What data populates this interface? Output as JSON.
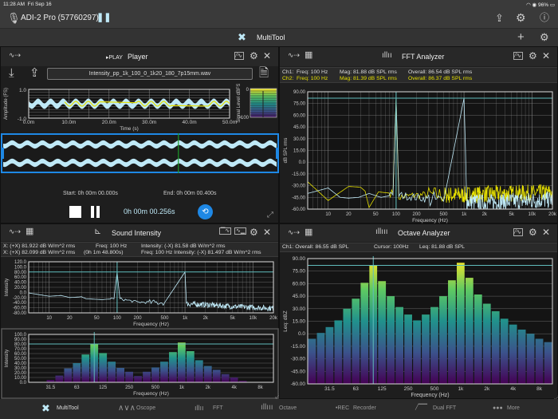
{
  "status": {
    "time": "11:28 AM",
    "date": "Fri Sep 16",
    "battery": "96%"
  },
  "device": {
    "name": "ADI-2 Pro (57760297)"
  },
  "multitool": {
    "title": "MultiTool"
  },
  "player": {
    "play_label": "▸PLAY",
    "title": "Player",
    "file": "Intensity_pp_1k_100_0_1k20_180_7p15mm.wav",
    "start": "Start: 0h 00m 00.000s",
    "end": "End: 0h 00m 00.400s",
    "position": "0h 00m 00.256s",
    "progress": 0.64
  },
  "fft": {
    "title": "FFT Analyzer",
    "ch1": {
      "label": "Ch1:",
      "freq": "Freq: 100 Hz",
      "mag": "Mag: 81.88 dB SPL rms",
      "overall": "Overall: 86.54  dB SPL rms"
    },
    "ch2": {
      "label": "Ch2:",
      "freq": "Freq: 100 Hz",
      "mag": "Mag: 81.39 dB SPL rms",
      "overall": "Overall: 86.37  dB SPL rms"
    }
  },
  "intensity": {
    "title": "Sound Intensity",
    "row1a": "X: (+X) 81.922 dB W/m^2 rms",
    "row1b": "Freq: 100 Hz",
    "row1c": "Intensity: (-X) 81.58 dB W/m^2 rms",
    "row2a": "X: (+X) 82.099 dB W/m^2 rms",
    "row2b": "(0h  1m 48.800s)",
    "row2c": "Freq: 100 Hz  Intensity: (-X) 81.497 dB W/m^2 rms"
  },
  "octave": {
    "title": "Octave Analyzer",
    "overall": "Ch1:  Overall: 86.55 dB SPL",
    "cursor": "Cursor: 100Hz",
    "leq": "Leq: 81.88 dB SPL"
  },
  "tabs": [
    {
      "label": "MultiTool",
      "icon": "multitool-icon"
    },
    {
      "label": "Oscope",
      "icon": "sine-wave-icon"
    },
    {
      "label": "FFT",
      "icon": "fft-icon"
    },
    {
      "label": "Octave",
      "icon": "octave-bars-icon"
    },
    {
      "label": "Recorder",
      "icon": "rec-icon",
      "prefix": "•REC"
    },
    {
      "label": "Dual FFT",
      "icon": "dual-fft-icon"
    },
    {
      "label": "More",
      "icon": "more-icon"
    }
  ],
  "colors": {
    "accent": "#1e88e5",
    "cursor": "#5fbcbc",
    "ch1": "#bfe9f7",
    "ch2": "#e6e000",
    "grid": "#8a8a8a"
  },
  "chart_data": [
    {
      "id": "waveform",
      "type": "line",
      "xlabel": "Time (s)",
      "ylabel": "Amplitude (FS)",
      "ylim": [
        -1,
        1
      ],
      "yticks": [
        "1.0",
        "-1.0"
      ],
      "xticks": [
        "0.0m",
        "10.0m",
        "20.0m",
        "30.0m",
        "40.0m",
        "50.0m"
      ],
      "xlim": [
        0,
        50
      ],
      "series": [
        {
          "name": "Ch1",
          "amplitude": 0.2
        },
        {
          "name": "Ch2",
          "amplitude": 0.15
        }
      ]
    },
    {
      "id": "signal-level",
      "type": "bar",
      "ylabel": "Signal Level dBFS",
      "yticks": [
        "0",
        "-100"
      ],
      "ylim": [
        -100,
        0
      ]
    },
    {
      "id": "fft",
      "type": "line",
      "xlabel": "Frequency (Hz)",
      "ylabel": "dB SPL rms",
      "xlim": [
        5,
        20000
      ],
      "ylim": [
        -60,
        90
      ],
      "xticks": [
        10,
        20,
        50,
        100,
        200,
        500,
        1000,
        2000,
        5000,
        10000,
        20000
      ],
      "xtick_labels": [
        "10",
        "20",
        "50",
        "100",
        "200",
        "500",
        "1k",
        "2k",
        "5k",
        "10k",
        "20k"
      ],
      "yticks": [
        "90.00",
        "75.00",
        "60.00",
        "45.00",
        "30.00",
        "15.00",
        "0.0",
        "-15.00",
        "-30.00",
        "-45.00",
        "-60.00"
      ],
      "cursor_freq": 100,
      "cursor_level": 81.88,
      "series": [
        {
          "name": "Ch1",
          "points": [
            [
              5,
              -40
            ],
            [
              10,
              -33
            ],
            [
              15,
              -45
            ],
            [
              20,
              -46
            ],
            [
              28,
              -45
            ],
            [
              40,
              -40
            ],
            [
              60,
              -45
            ],
            [
              90,
              -42
            ],
            [
              100,
              81.88
            ],
            [
              110,
              -42
            ],
            [
              200,
              -45
            ],
            [
              500,
              -50
            ],
            [
              1000,
              81.88
            ],
            [
              1100,
              -50
            ],
            [
              2000,
              -52
            ],
            [
              5000,
              -50
            ],
            [
              20000,
              -48
            ]
          ]
        },
        {
          "name": "Ch2",
          "points": [
            [
              5,
              -25
            ],
            [
              10,
              -49
            ],
            [
              20,
              -31
            ],
            [
              30,
              -32
            ],
            [
              35,
              -37
            ],
            [
              40,
              -58
            ],
            [
              55,
              -38
            ],
            [
              90,
              -40
            ],
            [
              100,
              81.39
            ],
            [
              110,
              -45
            ],
            [
              200,
              -42
            ],
            [
              500,
              -42
            ],
            [
              1000,
              -42
            ],
            [
              2000,
              -41
            ],
            [
              5000,
              -40
            ],
            [
              20000,
              -39
            ]
          ]
        }
      ]
    },
    {
      "id": "intensity-spectrum",
      "type": "line",
      "xlabel": "Frequency (Hz)",
      "ylabel": "Intensity",
      "xlim": [
        5,
        20000
      ],
      "ylim": [
        -80,
        120
      ],
      "xticks": [
        10,
        20,
        50,
        100,
        200,
        500,
        1000,
        2000,
        5000,
        10000,
        20000
      ],
      "xtick_labels": [
        "10",
        "20",
        "50",
        "100",
        "200",
        "500",
        "1k",
        "2k",
        "5k",
        "10k",
        "20k"
      ],
      "yticks": [
        "120.0",
        "100.0",
        "80.00",
        "60.00",
        "40.00",
        "20.00",
        "0.0",
        "-20.00",
        "-40.00",
        "-60.00",
        "-80.00"
      ],
      "cursor_freq": 100,
      "cursor_level": 80,
      "series": [
        {
          "points": [
            [
              5,
              -2
            ],
            [
              10,
              -15
            ],
            [
              15,
              -12
            ],
            [
              20,
              -20
            ],
            [
              30,
              -17
            ],
            [
              35,
              -25
            ],
            [
              60,
              -28
            ],
            [
              90,
              -25
            ],
            [
              100,
              80
            ],
            [
              110,
              -25
            ],
            [
              200,
              -38
            ],
            [
              500,
              -40
            ],
            [
              1000,
              80
            ],
            [
              1050,
              -45
            ],
            [
              2000,
              -48
            ],
            [
              5000,
              -55
            ],
            [
              20000,
              -62
            ]
          ]
        }
      ]
    },
    {
      "id": "intensity-octave",
      "type": "bar",
      "xlabel": "Frequency (Hz)",
      "ylabel": "Intensity",
      "ylim": [
        0,
        100
      ],
      "yticks": [
        "100.0",
        "90.00",
        "80.00",
        "70.00",
        "60.00",
        "50.00",
        "40.00",
        "30.00",
        "20.00",
        "10.00",
        "0.0"
      ],
      "bands": [
        "20",
        "25",
        "31.5",
        "40",
        "50",
        "63",
        "80",
        "100",
        "125",
        "160",
        "200",
        "250",
        "315",
        "400",
        "500",
        "630",
        "800",
        "1k",
        "1.25k",
        "1.6k",
        "2k",
        "2.5k",
        "3.15k",
        "4k",
        "5k",
        "6.3k",
        "8k",
        "10k"
      ],
      "xtick_labels": {
        "2": "31.5",
        "5": "63",
        "8": "125",
        "11": "250",
        "14": "500",
        "17": "1k",
        "20": "2k",
        "23": "4k",
        "26": "8k"
      },
      "values": [
        null,
        null,
        5,
        14,
        29,
        40,
        58,
        80,
        61,
        43,
        30,
        22,
        13,
        22,
        31,
        43,
        63,
        83,
        65,
        46,
        34,
        26,
        17,
        10,
        3,
        null,
        null,
        null
      ],
      "cursor_band": 7,
      "cursor_level": 80
    },
    {
      "id": "octave",
      "type": "bar",
      "xlabel": "Frequency (Hz)",
      "ylabel": "Leq: dBZ",
      "ylim": [
        -60,
        90
      ],
      "yticks": [
        "90.00",
        "75.00",
        "60.00",
        "45.00",
        "30.00",
        "15.00",
        "0.0",
        "-15.00",
        "-30.00",
        "-45.00",
        "-60.00"
      ],
      "bands": [
        "20",
        "25",
        "31.5",
        "40",
        "50",
        "63",
        "80",
        "100",
        "125",
        "160",
        "200",
        "250",
        "315",
        "400",
        "500",
        "630",
        "800",
        "1k",
        "1.25k",
        "1.6k",
        "2k",
        "2.5k",
        "3.15k",
        "4k",
        "5k",
        "6.3k",
        "8k",
        "10k"
      ],
      "xtick_labels": {
        "2": "31.5",
        "5": "63",
        "8": "125",
        "11": "250",
        "14": "500",
        "17": "1k",
        "20": "2k",
        "23": "4k",
        "26": "8k"
      },
      "values": [
        -6,
        1,
        8,
        16,
        30,
        42,
        61,
        82,
        63,
        45,
        32,
        23,
        16,
        23,
        32,
        45,
        64,
        85,
        67,
        47,
        36,
        27,
        18,
        11,
        5,
        0,
        -6,
        -10
      ],
      "cursor_band": 7,
      "cursor_level": 81.88
    }
  ]
}
